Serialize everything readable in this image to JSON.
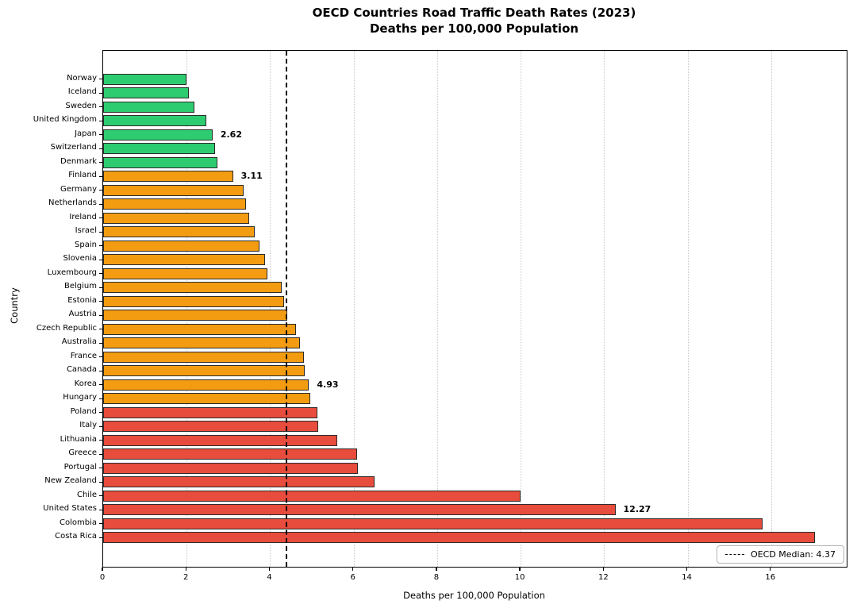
{
  "chart_data": {
    "type": "bar",
    "orientation": "horizontal",
    "title": "OECD Countries Road Traffic Death Rates (2023)",
    "subtitle": "Deaths per 100,000 Population",
    "xlabel": "Deaths per 100,000 Population",
    "ylabel": "Country",
    "xlim": [
      0,
      17.81
    ],
    "xticks": [
      0,
      2,
      4,
      6,
      8,
      10,
      12,
      14,
      16
    ],
    "xtick_labels": [
      "0",
      "2",
      "4",
      "6",
      "8",
      "10",
      "12",
      "14",
      "16"
    ],
    "grid": "vertical-dotted",
    "legend_position": "lower right",
    "categories": [
      "Norway",
      "Iceland",
      "Sweden",
      "United Kingdom",
      "Japan",
      "Switzerland",
      "Denmark",
      "Finland",
      "Germany",
      "Netherlands",
      "Ireland",
      "Israel",
      "Spain",
      "Slovenia",
      "Luxembourg",
      "Belgium",
      "Estonia",
      "Austria",
      "Czech Republic",
      "Australia",
      "France",
      "Canada",
      "Korea",
      "Hungary",
      "Poland",
      "Italy",
      "Lithuania",
      "Greece",
      "Portugal",
      "New Zealand",
      "Chile",
      "United States",
      "Colombia",
      "Costa Rica"
    ],
    "values": [
      2.0,
      2.05,
      2.18,
      2.47,
      2.62,
      2.68,
      2.73,
      3.11,
      3.37,
      3.42,
      3.5,
      3.63,
      3.75,
      3.88,
      3.93,
      4.28,
      4.33,
      4.41,
      4.62,
      4.72,
      4.8,
      4.83,
      4.93,
      4.96,
      5.13,
      5.15,
      5.6,
      6.08,
      6.1,
      6.5,
      10.0,
      12.27,
      15.8,
      17.05
    ],
    "annotations": [
      {
        "country": "Japan",
        "label": "2.62"
      },
      {
        "country": "Finland",
        "label": "3.11"
      },
      {
        "country": "Korea",
        "label": "4.93"
      },
      {
        "country": "United States",
        "label": "12.27"
      }
    ],
    "median_line": {
      "value": 4.37,
      "style": "dashed",
      "color": "#000000"
    },
    "legend": {
      "label": "OECD Median: 4.37"
    },
    "colors": {
      "green": "#2ecc71",
      "orange": "#f39c12",
      "red": "#e74c3c"
    },
    "color_rules": {
      "green_below": 3,
      "orange_below": 5
    },
    "bar_edge_color": "#2b2b2b"
  }
}
